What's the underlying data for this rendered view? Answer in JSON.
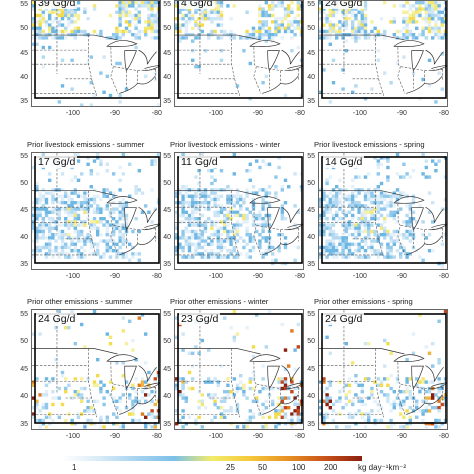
{
  "figure": {
    "rows": [
      {
        "titles": [
          "",
          "",
          ""
        ],
        "emissions": [
          "39 Gg/d",
          "4 Gg/d",
          "24 Gg/d"
        ],
        "pattern": "north"
      },
      {
        "titles": [
          "Prior livestock emissions - summer",
          "Prior livestock emissions - winter",
          "Prior livestock emissions - spring"
        ],
        "emissions": [
          "17 Gg/d",
          "11 Gg/d",
          "14 Gg/d"
        ],
        "pattern": "plains"
      },
      {
        "titles": [
          "Prior other emissions - summer",
          "Prior other emissions - winter",
          "Prior other emissions - spring"
        ],
        "emissions": [
          "24 Gg/d",
          "23 Gg/d",
          "24 Gg/d"
        ],
        "pattern": "east"
      }
    ],
    "lat_ticks": [
      "55",
      "50",
      "45",
      "40",
      "35"
    ],
    "lon_ticks": [
      "-100",
      "-90",
      "-80"
    ],
    "colorbar": {
      "ticks": [
        "1",
        "25",
        "50",
        "100",
        "200"
      ],
      "units": "kg day⁻¹km⁻²",
      "colors": [
        "#ffffff",
        "#d8ebf7",
        "#a6d2ef",
        "#7cc0e8",
        "#f2ec6a",
        "#f5c93c",
        "#e79324",
        "#c9531a",
        "#8b1f10"
      ]
    }
  }
}
